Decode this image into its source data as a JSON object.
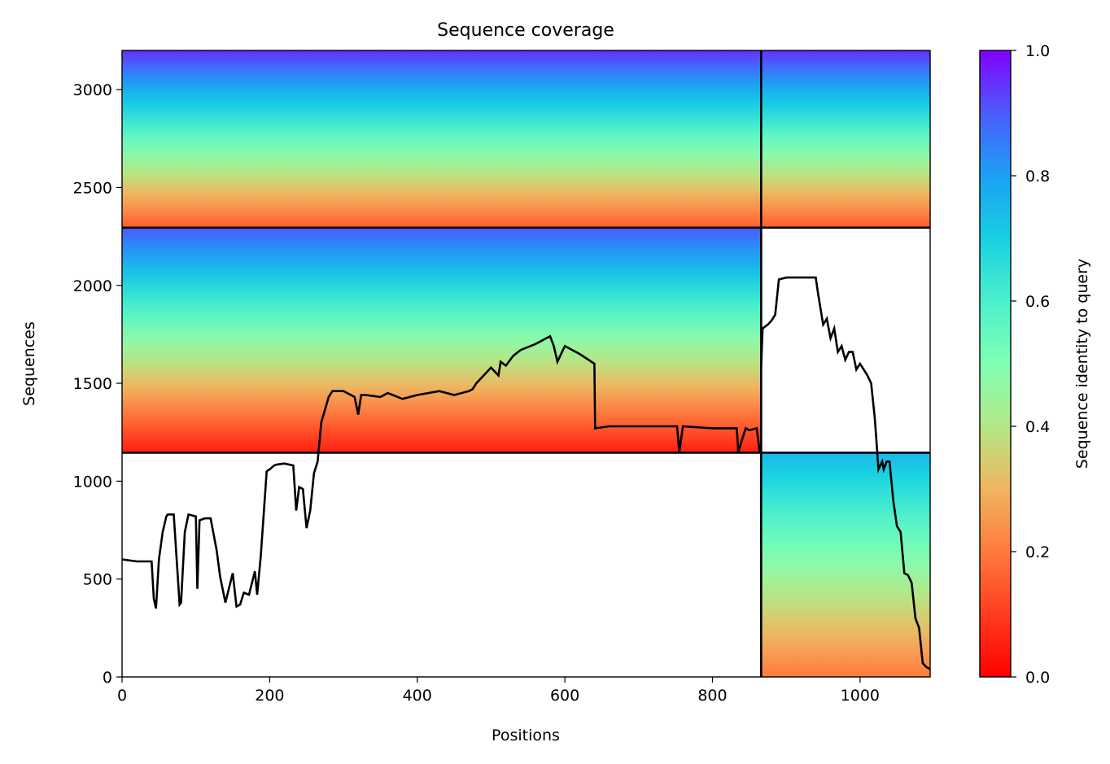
{
  "chart_data": {
    "type": "heatmap",
    "title": "Sequence coverage",
    "xlabel": "Positions",
    "ylabel": "Sequences",
    "xlim": [
      0,
      1095
    ],
    "ylim": [
      0,
      3200
    ],
    "x_ticks": [
      0,
      200,
      400,
      600,
      800,
      1000
    ],
    "y_ticks": [
      0,
      500,
      1000,
      1500,
      2000,
      2500,
      3000
    ],
    "grid": false,
    "colorbar": {
      "label": "Sequence identity to query",
      "range": [
        0.0,
        1.0
      ],
      "ticks": [
        0.0,
        0.2,
        0.4,
        0.6,
        0.8,
        1.0
      ],
      "tick_labels": [
        "0.0",
        "0.2",
        "0.4",
        "0.6",
        "0.8",
        "1.0"
      ],
      "colormap": "rainbow (red=0.0 to violet=1.0)"
    },
    "chain_boundaries": {
      "x": [
        866
      ],
      "y": [
        1145,
        2295
      ]
    },
    "coverage_blocks": [
      {
        "x_range": [
          0,
          866
        ],
        "y_range": [
          2295,
          3200
        ],
        "identity_top": 0.95,
        "identity_bottom": 0.15
      },
      {
        "x_range": [
          866,
          1095
        ],
        "y_range": [
          2295,
          3200
        ],
        "identity_top": 0.95,
        "identity_bottom": 0.15
      },
      {
        "x_range": [
          0,
          866
        ],
        "y_range": [
          1145,
          2295
        ],
        "identity_top": 0.9,
        "identity_bottom": 0.05
      },
      {
        "x_range": [
          866,
          1095
        ],
        "y_range": [
          0,
          1145
        ],
        "identity_top": 0.75,
        "identity_bottom": 0.2
      }
    ],
    "coverage_line": {
      "x": [
        0,
        20,
        40,
        43,
        46,
        50,
        55,
        60,
        62,
        70,
        78,
        80,
        85,
        90,
        100,
        102,
        105,
        112,
        120,
        128,
        133,
        140,
        150,
        155,
        160,
        165,
        172,
        180,
        183,
        188,
        196,
        200,
        206,
        210,
        220,
        232,
        236,
        240,
        245,
        250,
        255,
        260,
        265,
        270,
        280,
        285,
        300,
        315,
        320,
        324,
        330,
        350,
        360,
        380,
        400,
        430,
        450,
        470,
        475,
        480,
        500,
        510,
        513,
        520,
        530,
        540,
        560,
        575,
        580,
        585,
        590,
        600,
        620,
        640,
        641,
        660,
        700,
        752,
        755,
        760,
        800,
        833,
        835,
        845,
        850,
        860,
        864
      ],
      "y": [
        600,
        590,
        590,
        400,
        350,
        600,
        740,
        820,
        830,
        830,
        370,
        380,
        740,
        830,
        820,
        450,
        800,
        810,
        810,
        650,
        510,
        380,
        530,
        360,
        370,
        430,
        420,
        540,
        420,
        620,
        1050,
        1060,
        1080,
        1085,
        1090,
        1080,
        850,
        970,
        960,
        760,
        850,
        1040,
        1100,
        1300,
        1430,
        1460,
        1460,
        1430,
        1340,
        1440,
        1440,
        1430,
        1450,
        1420,
        1440,
        1460,
        1440,
        1460,
        1470,
        1500,
        1580,
        1540,
        1610,
        1590,
        1640,
        1670,
        1700,
        1730,
        1740,
        1690,
        1610,
        1690,
        1650,
        1600,
        1270,
        1280,
        1280,
        1280,
        1150,
        1280,
        1270,
        1270,
        1150,
        1270,
        1260,
        1270,
        1150
      ]
    },
    "coverage_line_2": {
      "x": [
        866,
        868,
        875,
        880,
        885,
        890,
        900,
        910,
        925,
        935,
        940,
        943,
        950,
        955,
        960,
        965,
        970,
        975,
        980,
        985,
        990,
        995,
        1000,
        1005,
        1010,
        1015,
        1020,
        1025,
        1030,
        1032,
        1036,
        1040,
        1045,
        1050,
        1055,
        1060,
        1065,
        1070,
        1075,
        1080,
        1085,
        1090,
        1095
      ],
      "y": [
        1580,
        1780,
        1800,
        1820,
        1850,
        2030,
        2040,
        2040,
        2040,
        2040,
        2040,
        1960,
        1800,
        1830,
        1730,
        1780,
        1660,
        1690,
        1620,
        1660,
        1660,
        1570,
        1600,
        1570,
        1540,
        1500,
        1320,
        1060,
        1100,
        1060,
        1100,
        1100,
        900,
        770,
        740,
        530,
        520,
        480,
        300,
        250,
        70,
        50,
        40
      ]
    },
    "colors": {
      "line": "#000000",
      "background": "#ffffff"
    }
  }
}
